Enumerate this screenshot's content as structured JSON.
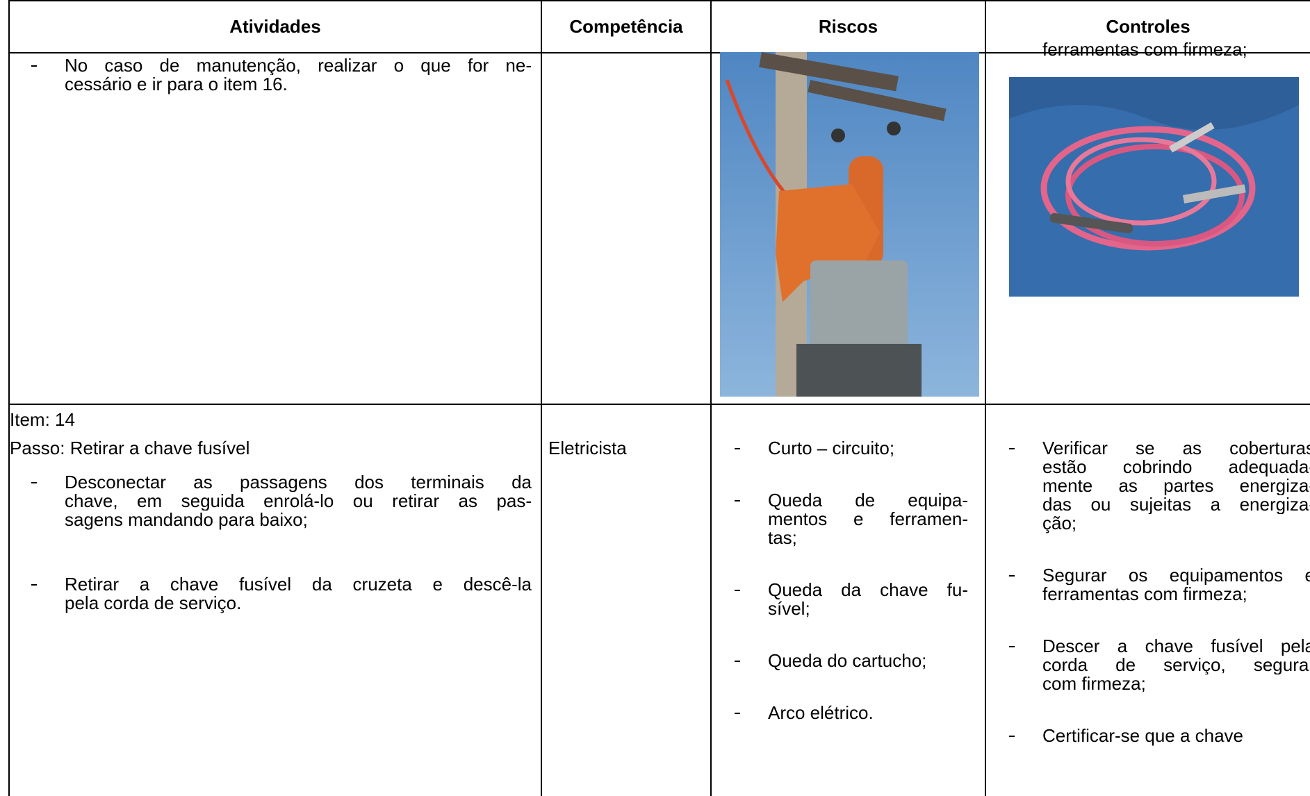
{
  "table": {
    "headers": [
      "Atividades",
      "Competência",
      "Riscos",
      "Controles"
    ],
    "rows": [
      {
        "atividades": [
          [
            "No caso de manutenção, realizar o que for ne-",
            "cessário e ir para o item 16."
          ]
        ],
        "controles": [
          [
            "ferramentas com firmeza;"
          ]
        ]
      },
      {
        "item": "Item: 14",
        "passo": "Passo: Retirar a chave fusível",
        "atividades": [
          [
            "Desconectar as passagens dos terminais da",
            "chave, em seguida enrolá-lo ou retirar as pas-",
            "sagens mandando para baixo;"
          ],
          [
            "Retirar a chave fusível da cruzeta e descê-la",
            "pela corda de serviço."
          ]
        ],
        "competencia": "Eletricista",
        "riscos": [
          [
            "Curto – circuito;"
          ],
          [
            "Queda de equipa-",
            "mentos e ferramen-",
            "tas;"
          ],
          [
            "Queda da chave fu-",
            "sível;"
          ],
          [
            "Queda do cartucho;"
          ],
          [
            "Arco elétrico."
          ]
        ],
        "controles": [
          [
            "Verificar se as coberturas",
            "estão cobrindo adequada-",
            "mente as partes energiza-",
            "das ou sujeitas a energiza-",
            "ção;"
          ],
          [
            "Segurar os equipamentos e",
            "ferramentas com firmeza;"
          ],
          [
            "Descer a chave fusível pela",
            "corda de serviço, segurar",
            "com firmeza;"
          ],
          [
            "Certificar-se que a chave"
          ]
        ]
      }
    ]
  }
}
